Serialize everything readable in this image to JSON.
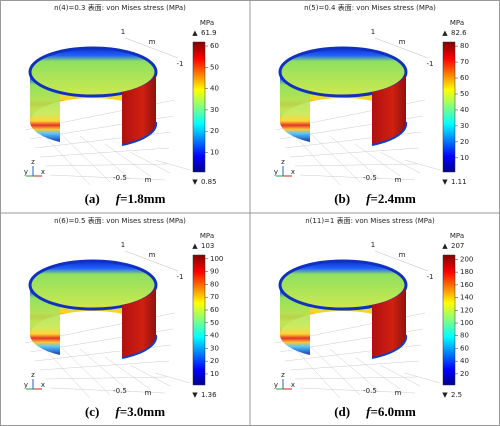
{
  "panels": [
    {
      "title": "n(4)=0.3  表面: von Mises stress (MPa)",
      "unit": "MPa",
      "colorbar": {
        "lim": [
          0.85,
          61.9
        ],
        "ticks": [
          60,
          50,
          40,
          30,
          20,
          10
        ]
      },
      "axis_texts": [
        "1",
        "m",
        "-1",
        "-0.5",
        "m",
        "z",
        "y",
        "x"
      ],
      "caption": {
        "label": "(a)",
        "symbol": "f",
        "text": "=1.8mm"
      }
    },
    {
      "title": "n(5)=0.4  表面: von Mises stress (MPa)",
      "unit": "MPa",
      "colorbar": {
        "lim": [
          1.11,
          82.6
        ],
        "ticks": [
          80,
          70,
          60,
          50,
          40,
          30,
          20,
          10
        ]
      },
      "axis_texts": [
        "1",
        "m",
        "-1",
        "-0.5",
        "m",
        "z",
        "y",
        "x"
      ],
      "caption": {
        "label": "(b)",
        "symbol": "f",
        "text": "=2.4mm"
      }
    },
    {
      "title": "n(6)=0.5  表面: von Mises stress (MPa)",
      "unit": "MPa",
      "colorbar": {
        "lim": [
          1.36,
          103
        ],
        "ticks": [
          100,
          90,
          80,
          70,
          60,
          50,
          40,
          30,
          20,
          10
        ]
      },
      "axis_texts": [
        "1",
        "m",
        "-1",
        "-0.5",
        "m",
        "z",
        "y",
        "x"
      ],
      "caption": {
        "label": "(c)",
        "symbol": "f",
        "text": "=3.0mm"
      }
    },
    {
      "title": "n(11)=1  表面: von Mises stress (MPa)",
      "unit": "MPa",
      "colorbar": {
        "lim": [
          2.5,
          207
        ],
        "ticks": [
          200,
          180,
          160,
          140,
          120,
          100,
          80,
          60,
          40,
          20
        ]
      },
      "axis_texts": [
        "1",
        "m",
        "-1",
        "-0.5",
        "m",
        "z",
        "y",
        "x"
      ],
      "caption": {
        "label": "(d)",
        "symbol": "f",
        "text": "=6.0mm"
      }
    }
  ]
}
